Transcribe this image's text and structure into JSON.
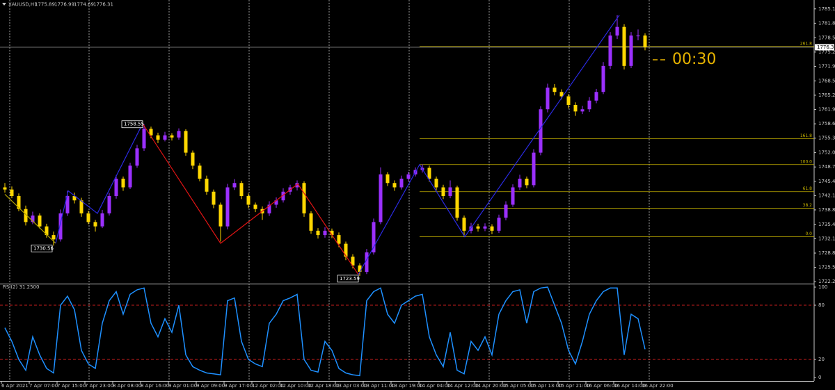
{
  "chart_data": {
    "type": "candlestick",
    "symbol": "XAUUSD,H1",
    "header_ohlc": [
      1775.89,
      1776.99,
      1774.69,
      1776.31
    ],
    "countdown": "00:30",
    "bull_color": "#9b30ff",
    "bear_color": "#ffd700",
    "ylim": [
      1721.8,
      1787.2
    ],
    "yticks": [
      {
        "value": 1785.15,
        "label": "1785.15"
      },
      {
        "value": 1781.85,
        "label": "1781.85"
      },
      {
        "value": 1778.5,
        "label": "1778.50"
      },
      {
        "value": 1775.2,
        "label": "1775.20"
      },
      {
        "value": 1771.9,
        "label": "1771.90"
      },
      {
        "value": 1768.55,
        "label": "1768.55"
      },
      {
        "value": 1765.25,
        "label": "1765.25"
      },
      {
        "value": 1761.95,
        "label": "1761.95"
      },
      {
        "value": 1758.65,
        "label": "1758.65"
      },
      {
        "value": 1755.35,
        "label": "1755.35"
      },
      {
        "value": 1752,
        "label": "1752.00"
      },
      {
        "value": 1748.7,
        "label": "1748.70"
      },
      {
        "value": 1745.4,
        "label": "1745.40"
      },
      {
        "value": 1742.1,
        "label": "1742.10"
      },
      {
        "value": 1738.8,
        "label": "1738.80"
      },
      {
        "value": 1735.45,
        "label": "1735.45"
      },
      {
        "value": 1732.15,
        "label": "1732.15"
      },
      {
        "value": 1728.85,
        "label": "1728.85"
      },
      {
        "value": 1725.55,
        "label": "1725.55"
      },
      {
        "value": 1722.25,
        "label": "1722.25"
      }
    ],
    "categories": [
      "6 Apr 2021",
      "7 Apr 07:00",
      "7 Apr 15:00",
      "7 Apr 23:00",
      "8 Apr 08:00",
      "8 Apr 16:00",
      "9 Apr 01:00",
      "9 Apr 09:00",
      "9 Apr 17:00",
      "12 Apr 02:00",
      "12 Apr 10:00",
      "12 Apr 18:00",
      "13 Apr 03:00",
      "13 Apr 11:00",
      "13 Apr 19:00",
      "14 Apr 04:00",
      "14 Apr 12:00",
      "14 Apr 20:00",
      "15 Apr 05:00",
      "15 Apr 13:00",
      "15 Apr 21:00",
      "16 Apr 06:00",
      "16 Apr 14:00",
      "16 Apr 22:00"
    ],
    "candles": [
      [
        1744,
        1745,
        1742.8,
        1743.5
      ],
      [
        1743.5,
        1744.2,
        1741.5,
        1742
      ],
      [
        1742,
        1742.6,
        1738.5,
        1739
      ],
      [
        1739,
        1739.8,
        1735.2,
        1736
      ],
      [
        1736,
        1738.4,
        1735.5,
        1737.5
      ],
      [
        1737.5,
        1738,
        1734.5,
        1735
      ],
      [
        1735,
        1735.6,
        1732.4,
        1733
      ],
      [
        1733,
        1733.8,
        1730.56,
        1732
      ],
      [
        1732,
        1738.9,
        1731.5,
        1738
      ],
      [
        1738,
        1743.2,
        1737.4,
        1742
      ],
      [
        1742,
        1742.8,
        1740.3,
        1741
      ],
      [
        1741,
        1741.6,
        1737.2,
        1738
      ],
      [
        1738,
        1738.6,
        1735.5,
        1736
      ],
      [
        1736,
        1736.5,
        1733.8,
        1735
      ],
      [
        1735,
        1738.8,
        1734.6,
        1738
      ],
      [
        1738,
        1742.7,
        1737.5,
        1742
      ],
      [
        1742,
        1746.8,
        1741.4,
        1746
      ],
      [
        1746,
        1746.5,
        1743.2,
        1744
      ],
      [
        1744,
        1749.7,
        1743.6,
        1749
      ],
      [
        1749,
        1753.8,
        1748.5,
        1753
      ],
      [
        1753,
        1758.55,
        1752.4,
        1757.5
      ],
      [
        1757.5,
        1758,
        1755.3,
        1756
      ],
      [
        1756,
        1756.6,
        1754.2,
        1755
      ],
      [
        1755,
        1756.8,
        1754.6,
        1756
      ],
      [
        1756,
        1756.5,
        1754.8,
        1755.5
      ],
      [
        1755.5,
        1757.6,
        1755,
        1757
      ],
      [
        1757,
        1757.4,
        1751.3,
        1752
      ],
      [
        1752,
        1752.5,
        1748.2,
        1749
      ],
      [
        1749,
        1749.6,
        1745.4,
        1746
      ],
      [
        1746,
        1746.7,
        1742.3,
        1743
      ],
      [
        1743,
        1743.5,
        1739.2,
        1740
      ],
      [
        1740,
        1740.5,
        1731.5,
        1735
      ],
      [
        1735,
        1744.8,
        1734.3,
        1744
      ],
      [
        1744,
        1745.9,
        1743.4,
        1745
      ],
      [
        1745,
        1745.5,
        1741.3,
        1742
      ],
      [
        1742,
        1742.6,
        1739.2,
        1740
      ],
      [
        1740,
        1740.5,
        1738.3,
        1739
      ],
      [
        1739,
        1739.6,
        1736.5,
        1738
      ],
      [
        1738,
        1740.8,
        1737.4,
        1740
      ],
      [
        1740,
        1741.7,
        1739.3,
        1741
      ],
      [
        1741,
        1743.8,
        1740.5,
        1743
      ],
      [
        1743,
        1744.6,
        1742.3,
        1744
      ],
      [
        1744,
        1745.6,
        1743.3,
        1745
      ],
      [
        1745,
        1745.4,
        1737.2,
        1738
      ],
      [
        1738,
        1738.5,
        1733.3,
        1734
      ],
      [
        1734,
        1734.6,
        1732.2,
        1733
      ],
      [
        1733,
        1734.8,
        1732.4,
        1734
      ],
      [
        1734,
        1734.5,
        1732.3,
        1733
      ],
      [
        1733,
        1733.6,
        1730.2,
        1731
      ],
      [
        1731,
        1731.5,
        1727.2,
        1728
      ],
      [
        1728,
        1728.6,
        1725.3,
        1726
      ],
      [
        1726,
        1726.5,
        1723.59,
        1724.5
      ],
      [
        1724.5,
        1729.8,
        1724,
        1729
      ],
      [
        1729,
        1736.8,
        1728.5,
        1736
      ],
      [
        1736,
        1748.6,
        1735.5,
        1747
      ],
      [
        1747,
        1747.5,
        1744.3,
        1745
      ],
      [
        1745,
        1745.6,
        1743.2,
        1744
      ],
      [
        1744,
        1746.7,
        1743.5,
        1746
      ],
      [
        1746,
        1747.6,
        1745.4,
        1747
      ],
      [
        1747,
        1748.6,
        1746.5,
        1748
      ],
      [
        1748,
        1749.3,
        1747.4,
        1748.5
      ],
      [
        1748.5,
        1749,
        1745.3,
        1746
      ],
      [
        1746,
        1746.5,
        1743.3,
        1744
      ],
      [
        1744,
        1744.6,
        1741.3,
        1742
      ],
      [
        1742,
        1745.6,
        1741.5,
        1744
      ],
      [
        1744,
        1744.4,
        1736.3,
        1737
      ],
      [
        1737,
        1737.5,
        1732.6,
        1734
      ],
      [
        1734,
        1735.8,
        1733.4,
        1735
      ],
      [
        1735,
        1735.6,
        1733.8,
        1734.5
      ],
      [
        1734.5,
        1735.7,
        1733.9,
        1735
      ],
      [
        1735,
        1735.5,
        1733.2,
        1734
      ],
      [
        1734,
        1737.7,
        1733.5,
        1737
      ],
      [
        1737,
        1740.8,
        1736.4,
        1740
      ],
      [
        1740,
        1744.7,
        1739.5,
        1744
      ],
      [
        1744,
        1746.9,
        1743.4,
        1746
      ],
      [
        1746,
        1746.5,
        1743.8,
        1744.5
      ],
      [
        1744.5,
        1752.8,
        1744,
        1752
      ],
      [
        1752,
        1762.7,
        1751.4,
        1762
      ],
      [
        1762,
        1767.9,
        1761.3,
        1767
      ],
      [
        1767,
        1767.8,
        1765.2,
        1766
      ],
      [
        1766,
        1766.6,
        1764.3,
        1765
      ],
      [
        1765,
        1765.5,
        1762.2,
        1763
      ],
      [
        1763,
        1763.6,
        1760.5,
        1761.5
      ],
      [
        1761.5,
        1762.8,
        1760.9,
        1762
      ],
      [
        1762,
        1764.8,
        1761.4,
        1764
      ],
      [
        1764,
        1766.7,
        1763.4,
        1766
      ],
      [
        1766,
        1772.9,
        1765.5,
        1772
      ],
      [
        1772,
        1779.8,
        1771.3,
        1779
      ],
      [
        1779,
        1783.7,
        1778.2,
        1781
      ],
      [
        1781,
        1781.6,
        1771.2,
        1772
      ],
      [
        1772,
        1779.8,
        1771.5,
        1779
      ],
      [
        1779,
        1780.4,
        1777.9,
        1779
      ],
      [
        1779,
        1779.5,
        1775.6,
        1776.31
      ]
    ],
    "price_labels": [
      {
        "candle": 7,
        "field": 2
      },
      {
        "candle": 20,
        "field": 1
      },
      {
        "candle": 51,
        "field": 2
      }
    ],
    "fib_color": "#c8b400",
    "fib_levels": [
      {
        "label": "261.8",
        "price": 1776.5
      },
      {
        "label": "161.8",
        "price": 1755.2
      },
      {
        "label": "100.0",
        "price": 1749.25
      },
      {
        "label": "61.8",
        "price": 1743.0
      },
      {
        "label": "38.2",
        "price": 1739.2
      },
      {
        "label": "0.0",
        "price": 1732.6
      }
    ],
    "zigzag": [
      {
        "color": "#b0a000",
        "x": [
          0,
          7.3
        ],
        "prices": [
          1742.4,
          1731.1
        ]
      },
      {
        "color": "#2a2ae0",
        "x": [
          7.3,
          9.1,
          13.3,
          19.8
        ],
        "prices": [
          1731.1,
          1743.2,
          1738.0,
          1758.7
        ]
      },
      {
        "color": "#e01414",
        "x": [
          19.8,
          31,
          42.1,
          50.8
        ],
        "prices": [
          1758.7,
          1731.1,
          1744.8,
          1723.9
        ]
      },
      {
        "color": "#2a2ae0",
        "x": [
          50.8,
          59.6,
          66.1,
          88.3
        ],
        "prices": [
          1723.9,
          1749.25,
          1732.6,
          1783.7
        ]
      }
    ],
    "rsi": {
      "title": "RSI(2) 31.2500",
      "color": "#1e90ff",
      "level_color": "#c81e1e",
      "levels": [
        80,
        20
      ],
      "ylim": [
        0,
        100
      ],
      "yticks": [
        100,
        80,
        20,
        0
      ],
      "values": [
        55,
        40,
        20,
        8,
        45,
        25,
        10,
        5,
        80,
        90,
        75,
        30,
        15,
        10,
        60,
        85,
        95,
        70,
        92,
        97,
        99,
        60,
        45,
        65,
        50,
        80,
        25,
        12,
        8,
        5,
        4,
        3,
        85,
        88,
        40,
        20,
        15,
        12,
        60,
        70,
        85,
        88,
        92,
        20,
        8,
        6,
        40,
        30,
        10,
        5,
        3,
        2,
        85,
        95,
        99,
        70,
        60,
        80,
        85,
        90,
        92,
        45,
        25,
        12,
        50,
        8,
        4,
        40,
        30,
        45,
        25,
        70,
        85,
        95,
        97,
        60,
        95,
        99,
        100,
        80,
        60,
        30,
        15,
        40,
        70,
        85,
        95,
        99,
        99,
        25,
        70,
        65,
        31.25
      ]
    }
  }
}
